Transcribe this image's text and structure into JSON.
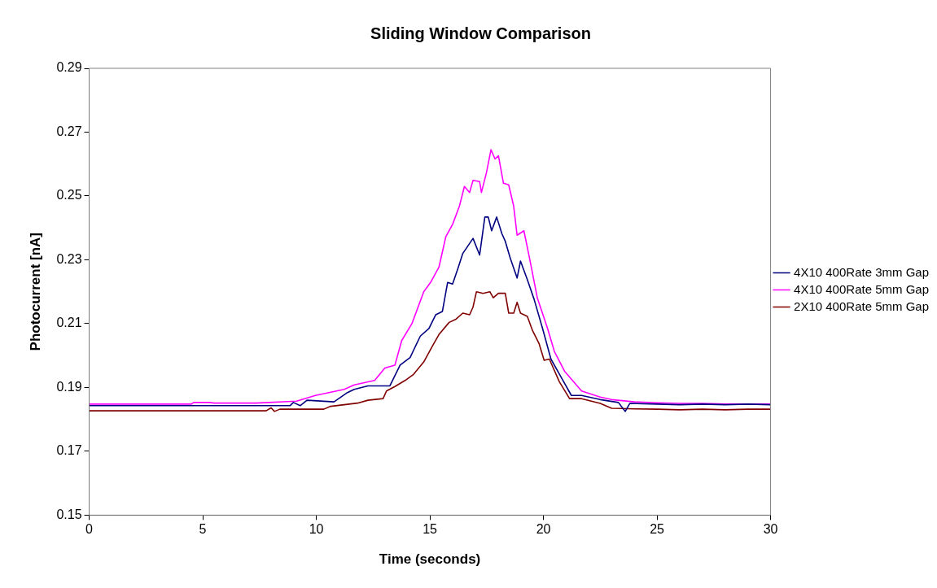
{
  "chart_data": {
    "type": "line",
    "title": "Sliding Window Comparison",
    "xlabel": "Time (seconds)",
    "ylabel": "Photocurrent [nA]",
    "xlim": [
      0,
      30
    ],
    "xticks": [
      0,
      5,
      10,
      15,
      20,
      25,
      30
    ],
    "ylim": [
      0.15,
      0.29
    ],
    "yticks": [
      0.15,
      0.17,
      0.19,
      0.21,
      0.23,
      0.25,
      0.27,
      0.29
    ],
    "grid": false,
    "legend": "right",
    "marker": "none",
    "line_style": "solid",
    "series": [
      {
        "name": "4X10 400Rate 3mm Gap",
        "color": "#000080",
        "x": [
          0,
          7,
          7.34,
          8.84,
          8.99,
          9.29,
          9.59,
          10.78,
          11.37,
          11.67,
          12.27,
          13.24,
          13.69,
          14.13,
          14.58,
          14.96,
          15.26,
          15.55,
          15.78,
          16.0,
          16.23,
          16.45,
          16.9,
          17.19,
          17.42,
          17.57,
          17.72,
          17.94,
          18.17,
          18.32,
          18.54,
          18.84,
          18.99,
          19.29,
          19.59,
          19.96,
          20.33,
          20.78,
          21.23,
          21.68,
          22.5,
          23.3,
          23.6,
          23.8,
          25,
          26,
          27,
          28,
          29,
          30
        ],
        "values": [
          0.1843,
          0.1843,
          0.1843,
          0.1843,
          0.1853,
          0.1843,
          0.186,
          0.1855,
          0.1884,
          0.1894,
          0.1905,
          0.1905,
          0.197,
          0.1994,
          0.2061,
          0.2085,
          0.2128,
          0.2138,
          0.2229,
          0.2224,
          0.2272,
          0.232,
          0.2367,
          0.2315,
          0.2434,
          0.2434,
          0.2391,
          0.2434,
          0.2382,
          0.2358,
          0.2305,
          0.2243,
          0.2296,
          0.2238,
          0.2176,
          0.2085,
          0.1989,
          0.1932,
          0.1875,
          0.1875,
          0.1862,
          0.1853,
          0.1825,
          0.185,
          0.1848,
          0.1846,
          0.1848,
          0.1846,
          0.1848,
          0.1846
        ]
      },
      {
        "name": "4X10 400Rate 5mm Gap",
        "color": "#ff00ff",
        "x": [
          0,
          4.5,
          4.6,
          5.3,
          5.5,
          7.34,
          9.13,
          9.96,
          11.23,
          11.67,
          12.57,
          13.02,
          13.46,
          13.76,
          14.21,
          14.73,
          15.03,
          15.4,
          15.7,
          16.0,
          16.3,
          16.52,
          16.75,
          16.9,
          17.19,
          17.27,
          17.49,
          17.69,
          17.87,
          18.02,
          18.24,
          18.47,
          18.69,
          18.84,
          19.14,
          19.36,
          19.73,
          20.18,
          20.48,
          20.93,
          21.68,
          22.5,
          23,
          24,
          25,
          26,
          27,
          28,
          30
        ],
        "values": [
          0.1848,
          0.1848,
          0.1853,
          0.1853,
          0.1851,
          0.1851,
          0.1857,
          0.1875,
          0.1894,
          0.1908,
          0.1922,
          0.1961,
          0.197,
          0.2047,
          0.21,
          0.22,
          0.2229,
          0.2277,
          0.2372,
          0.2411,
          0.2468,
          0.253,
          0.2511,
          0.2549,
          0.2545,
          0.2511,
          0.2573,
          0.2645,
          0.2616,
          0.2626,
          0.254,
          0.2535,
          0.2468,
          0.2377,
          0.2391,
          0.2315,
          0.2181,
          0.2085,
          0.2013,
          0.1951,
          0.1889,
          0.187,
          0.1862,
          0.1855,
          0.1852,
          0.185,
          0.185,
          0.1848,
          0.1848
        ]
      },
      {
        "name": "2X10 400Rate 5mm Gap",
        "color": "#800000",
        "x": [
          0,
          7,
          7.34,
          7.79,
          8.01,
          8.16,
          8.39,
          10.33,
          10.63,
          11.82,
          12.27,
          12.94,
          13.09,
          13.46,
          13.91,
          14.28,
          14.73,
          15.1,
          15.4,
          15.85,
          16.15,
          16.45,
          16.75,
          16.9,
          17.05,
          17.34,
          17.64,
          17.79,
          18.02,
          18.32,
          18.47,
          18.69,
          18.84,
          18.99,
          19.29,
          19.51,
          19.81,
          20.03,
          20.26,
          20.7,
          21.15,
          21.68,
          22.5,
          23,
          24,
          25,
          26,
          27,
          28,
          29,
          30
        ],
        "values": [
          0.1827,
          0.1827,
          0.1827,
          0.1827,
          0.1836,
          0.1825,
          0.1832,
          0.1832,
          0.1841,
          0.1851,
          0.186,
          0.1865,
          0.1889,
          0.1903,
          0.1922,
          0.1941,
          0.198,
          0.2028,
          0.2066,
          0.2104,
          0.2114,
          0.2133,
          0.2128,
          0.2152,
          0.22,
          0.2195,
          0.22,
          0.2181,
          0.2195,
          0.2195,
          0.2133,
          0.2133,
          0.2167,
          0.2133,
          0.2123,
          0.208,
          0.2037,
          0.1985,
          0.1989,
          0.1918,
          0.1865,
          0.1865,
          0.185,
          0.1835,
          0.1833,
          0.1832,
          0.183,
          0.1832,
          0.183,
          0.1832,
          0.1832
        ]
      }
    ]
  }
}
